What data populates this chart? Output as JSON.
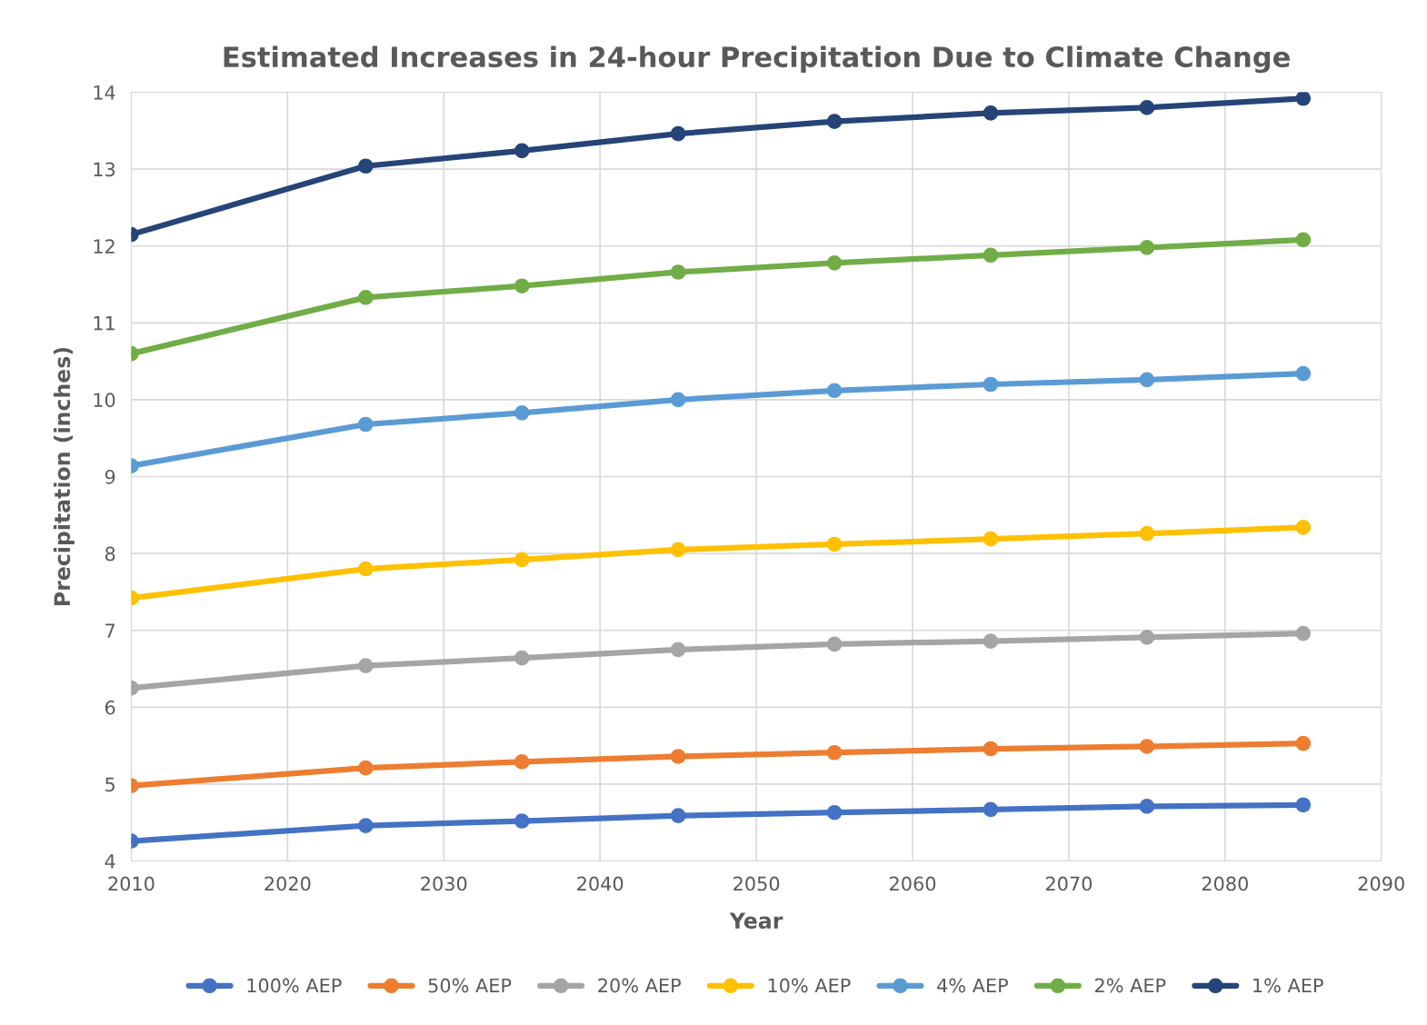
{
  "chart_data": {
    "type": "line",
    "title": "Estimated Increases in 24-hour Precipitation Due to Climate Change",
    "xlabel": "Year",
    "ylabel": "Precipitation (inches)",
    "x": [
      2010,
      2025,
      2035,
      2045,
      2055,
      2065,
      2075,
      2085
    ],
    "series": [
      {
        "name": "100% AEP",
        "color": "#4472c4",
        "values": [
          4.26,
          4.46,
          4.52,
          4.59,
          4.63,
          4.67,
          4.71,
          4.73
        ]
      },
      {
        "name": "50% AEP",
        "color": "#ed7d31",
        "values": [
          4.98,
          5.21,
          5.29,
          5.36,
          5.41,
          5.46,
          5.49,
          5.53
        ]
      },
      {
        "name": "20% AEP",
        "color": "#a5a5a5",
        "values": [
          6.25,
          6.54,
          6.64,
          6.75,
          6.82,
          6.86,
          6.91,
          6.96
        ]
      },
      {
        "name": "10% AEP",
        "color": "#ffc000",
        "values": [
          7.42,
          7.8,
          7.92,
          8.05,
          8.12,
          8.19,
          8.26,
          8.34
        ]
      },
      {
        "name": "4% AEP",
        "color": "#5b9bd5",
        "values": [
          9.14,
          9.68,
          9.83,
          10.0,
          10.12,
          10.2,
          10.26,
          10.34
        ]
      },
      {
        "name": "2% AEP",
        "color": "#70ad47",
        "values": [
          10.6,
          11.33,
          11.48,
          11.66,
          11.78,
          11.88,
          11.98,
          12.08
        ]
      },
      {
        "name": "1% AEP",
        "color": "#264478",
        "values": [
          12.15,
          13.04,
          13.24,
          13.46,
          13.62,
          13.73,
          13.8,
          13.92
        ]
      }
    ],
    "xlim": [
      2010,
      2090
    ],
    "xticks": [
      2010,
      2020,
      2030,
      2040,
      2050,
      2060,
      2070,
      2080,
      2090
    ],
    "ylim": [
      4,
      14
    ],
    "yticks": [
      4,
      5,
      6,
      7,
      8,
      9,
      10,
      11,
      12,
      13,
      14
    ],
    "grid": true,
    "legend": "bottom",
    "marker": "circle",
    "line_style": "solid"
  }
}
